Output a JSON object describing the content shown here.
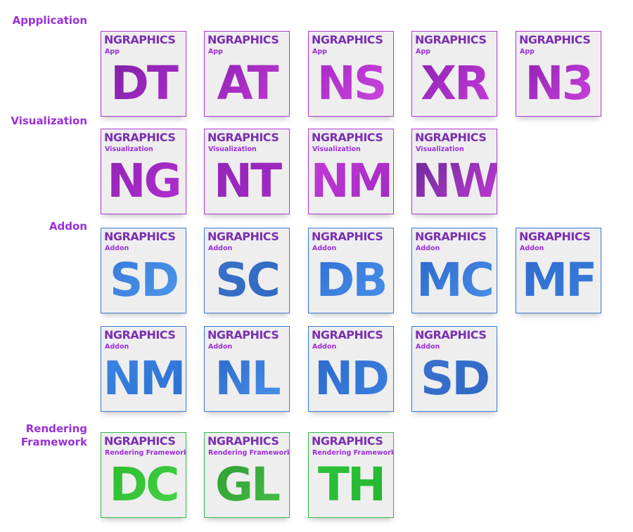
{
  "brand": "NGRAPHICS",
  "sections": [
    {
      "label": "Appplication",
      "category": "App",
      "color": "#9b2fd8",
      "tiles": [
        {
          "code": "DT",
          "grad": [
            "#7a1fa2",
            "#b02ecf"
          ]
        },
        {
          "code": "AT",
          "grad": [
            "#8a21b0",
            "#c93ad8"
          ]
        },
        {
          "code": "NS",
          "grad": [
            "#a426c6",
            "#d04ae0"
          ]
        },
        {
          "code": "XR",
          "grad": [
            "#8b22b3",
            "#c73cd9"
          ]
        },
        {
          "code": "N3",
          "grad": [
            "#8a1fb0",
            "#d345e0"
          ]
        }
      ]
    },
    {
      "label": "Visualization",
      "category": "Visualization",
      "color": "#9b2fd8",
      "tiles": [
        {
          "code": "NG",
          "grad": [
            "#8f23b5",
            "#b32fd0"
          ]
        },
        {
          "code": "NT",
          "grad": [
            "#9224b7",
            "#a32bc4"
          ]
        },
        {
          "code": "NM",
          "grad": [
            "#c63ad8",
            "#9c2ac0"
          ]
        },
        {
          "code": "NW",
          "grad": [
            "#6b2a96",
            "#c23ad6"
          ]
        }
      ]
    },
    {
      "label": "Addon",
      "category": "Addon",
      "color": "#3a7bd5",
      "tiles": [
        {
          "code": "SD",
          "grad": [
            "#3777d6",
            "#4f9af0"
          ]
        },
        {
          "code": "SC",
          "grad": [
            "#3a72c9",
            "#2f68c0"
          ]
        },
        {
          "code": "DB",
          "grad": [
            "#2f6fd3",
            "#4a93ec"
          ]
        },
        {
          "code": "MC",
          "grad": [
            "#2b66c8",
            "#4b92ea"
          ]
        },
        {
          "code": "MF",
          "grad": [
            "#2f6bcf",
            "#3a7edb"
          ]
        }
      ]
    },
    {
      "label": "",
      "category": "Addon",
      "color": "#3a7bd5",
      "tiles": [
        {
          "code": "NM",
          "grad": [
            "#3a86e6",
            "#2d6fd0"
          ]
        },
        {
          "code": "NL",
          "grad": [
            "#2a63c6",
            "#4d98ef"
          ]
        },
        {
          "code": "ND",
          "grad": [
            "#2c68cc",
            "#3b82e0"
          ]
        },
        {
          "code": "SD",
          "grad": [
            "#3a74d0",
            "#2e66c2"
          ]
        }
      ]
    },
    {
      "label": "Rendering\nFramework",
      "category": "Rendering Framework",
      "color": "#34b84a",
      "tiles": [
        {
          "code": "DC",
          "grad": [
            "#27b82a",
            "#4ad64a"
          ]
        },
        {
          "code": "GL",
          "grad": [
            "#2d9b30",
            "#47c04a"
          ]
        },
        {
          "code": "TH",
          "grad": [
            "#2cc43a",
            "#23b52e"
          ]
        }
      ]
    }
  ]
}
